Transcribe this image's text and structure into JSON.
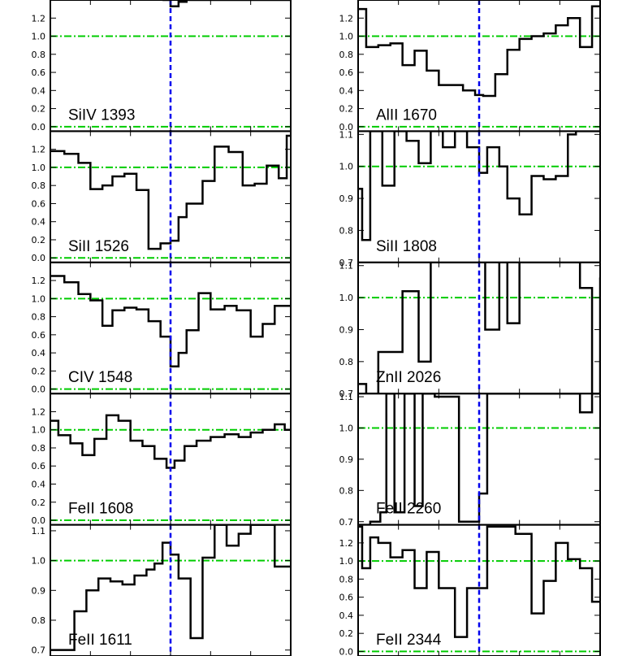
{
  "chart_data": {
    "type": "line",
    "style": "step",
    "layout": "two columns of five stacked panels sharing the velocity axis",
    "x_ticks": [
      -600,
      -400,
      -200,
      0,
      200,
      400,
      600
    ],
    "xlim": [
      -600,
      600
    ],
    "reference_lines": [
      {
        "name": "continuum",
        "axis": "y",
        "value": 1.0,
        "color": "#00cc00",
        "style": "dash-dot"
      },
      {
        "name": "zero-flux",
        "axis": "y",
        "value": 0.0,
        "color": "#00cc00",
        "style": "dash-dot"
      },
      {
        "name": "zero-velocity",
        "axis": "x",
        "value": 0,
        "color": "#0000ee",
        "style": "dashed"
      }
    ],
    "panels": [
      {
        "column": 0,
        "row": 0,
        "label": "SiIV 1393",
        "ylim": [
          -0.05,
          1.4
        ],
        "y_ticks": [
          "0.0",
          "0.2",
          "0.4",
          "0.6",
          "0.8",
          "1.0",
          "1.2"
        ],
        "x": [
          -40,
          0,
          40,
          80
        ],
        "values": [
          1.4,
          1.33,
          1.38,
          1.4
        ]
      },
      {
        "column": 0,
        "row": 1,
        "label": "SiII 1526",
        "ylim": [
          -0.05,
          1.4
        ],
        "y_ticks": [
          "0.0",
          "0.2",
          "0.4",
          "0.6",
          "0.8",
          "1.0",
          "1.2"
        ],
        "x": [
          -620,
          -530,
          -460,
          -400,
          -340,
          -290,
          -230,
          -170,
          -110,
          -50,
          0,
          40,
          80,
          160,
          220,
          290,
          360,
          420,
          480,
          540,
          580,
          600
        ],
        "values": [
          1.18,
          1.15,
          1.05,
          0.76,
          0.8,
          0.9,
          0.93,
          0.75,
          0.1,
          0.16,
          0.19,
          0.45,
          0.6,
          0.85,
          1.23,
          1.17,
          0.8,
          0.82,
          1.02,
          0.88,
          1.35,
          1.35
        ]
      },
      {
        "column": 0,
        "row": 2,
        "label": "CIV 1548",
        "ylim": [
          -0.05,
          1.4
        ],
        "y_ticks": [
          "0.0",
          "0.2",
          "0.4",
          "0.6",
          "0.8",
          "1.0",
          "1.2"
        ],
        "x": [
          -620,
          -530,
          -460,
          -400,
          -340,
          -290,
          -230,
          -170,
          -110,
          -50,
          0,
          40,
          80,
          140,
          200,
          270,
          330,
          400,
          460,
          520,
          560,
          600
        ],
        "values": [
          1.25,
          1.18,
          1.05,
          0.98,
          0.7,
          0.87,
          0.9,
          0.88,
          0.75,
          0.58,
          0.25,
          0.4,
          0.65,
          1.06,
          0.88,
          0.92,
          0.87,
          0.58,
          0.72,
          0.92,
          0.92,
          0.92
        ]
      },
      {
        "column": 0,
        "row": 3,
        "label": "FeII 1608",
        "ylim": [
          -0.05,
          1.4
        ],
        "y_ticks": [
          "0.0",
          "0.2",
          "0.4",
          "0.6",
          "0.8",
          "1.0",
          "1.2"
        ],
        "x": [
          -620,
          -560,
          -500,
          -440,
          -380,
          -320,
          -260,
          -200,
          -140,
          -80,
          -20,
          20,
          70,
          130,
          200,
          270,
          340,
          400,
          460,
          520,
          570,
          600
        ],
        "values": [
          1.1,
          0.94,
          0.85,
          0.72,
          0.9,
          1.16,
          1.1,
          0.88,
          0.82,
          0.68,
          0.58,
          0.66,
          0.82,
          0.88,
          0.92,
          0.95,
          0.92,
          0.97,
          1.0,
          1.06,
          1.0,
          1.0
        ]
      },
      {
        "column": 0,
        "row": 4,
        "label": "FeII 1611",
        "ylim": [
          0.68,
          1.12
        ],
        "y_ticks": [
          "0.7",
          "0.8",
          "0.9",
          "1.0",
          "1.1"
        ],
        "x": [
          -620,
          -480,
          -420,
          -360,
          -300,
          -240,
          -180,
          -120,
          -80,
          -40,
          0,
          40,
          100,
          160,
          220,
          280,
          340,
          400,
          460,
          520,
          560,
          600
        ],
        "values": [
          0.7,
          0.83,
          0.9,
          0.94,
          0.93,
          0.92,
          0.95,
          0.97,
          0.99,
          1.06,
          1.02,
          0.94,
          0.74,
          1.01,
          1.12,
          1.05,
          1.09,
          1.12,
          1.12,
          0.98,
          0.98,
          0.98
        ]
      },
      {
        "column": 1,
        "row": 0,
        "label": "AlII 1670",
        "ylim": [
          -0.05,
          1.4
        ],
        "y_ticks": [
          "0.0",
          "0.2",
          "0.4",
          "0.6",
          "0.8",
          "1.0",
          "1.2"
        ],
        "x": [
          -620,
          -560,
          -500,
          -440,
          -380,
          -320,
          -260,
          -200,
          -140,
          -80,
          -20,
          20,
          80,
          140,
          200,
          260,
          320,
          380,
          440,
          500,
          560,
          600
        ],
        "values": [
          1.3,
          0.88,
          0.9,
          0.92,
          0.68,
          0.84,
          0.62,
          0.46,
          0.46,
          0.4,
          0.35,
          0.34,
          0.58,
          0.85,
          0.97,
          1.0,
          1.03,
          1.12,
          1.2,
          0.88,
          1.33,
          1.33
        ]
      },
      {
        "column": 1,
        "row": 1,
        "label": "SiII 1808",
        "ylim": [
          0.7,
          1.11
        ],
        "y_ticks": [
          "0.7",
          "0.8",
          "0.9",
          "1.0",
          "1.1"
        ],
        "x": [
          -620,
          -580,
          -540,
          -480,
          -420,
          -360,
          -300,
          -240,
          -180,
          -120,
          -60,
          0,
          40,
          100,
          140,
          200,
          260,
          320,
          380,
          440,
          480,
          600
        ],
        "values": [
          0.93,
          0.77,
          1.11,
          0.94,
          1.11,
          1.08,
          1.01,
          1.11,
          1.06,
          1.11,
          1.06,
          0.98,
          1.06,
          1.0,
          0.9,
          0.85,
          0.97,
          0.96,
          0.97,
          1.1,
          1.11,
          1.11
        ]
      },
      {
        "column": 1,
        "row": 2,
        "label": "ZnII 2026",
        "ylim": [
          0.7,
          1.11
        ],
        "y_ticks": [
          "0.7",
          "0.8",
          "0.9",
          "1.0",
          "1.1"
        ],
        "x": [
          -620,
          -560,
          -500,
          -440,
          -380,
          -300,
          -240,
          -180,
          -120,
          -60,
          0,
          30,
          100,
          140,
          200,
          280,
          340,
          380,
          440,
          500,
          560,
          600
        ],
        "values": [
          0.73,
          0.7,
          0.83,
          0.83,
          1.02,
          0.8,
          1.11,
          1.11,
          1.11,
          1.11,
          1.11,
          0.9,
          1.11,
          0.92,
          1.11,
          1.11,
          1.11,
          1.11,
          1.11,
          1.03,
          0.7,
          1.06
        ]
      },
      {
        "column": 1,
        "row": 3,
        "label": "FeII 2260",
        "ylim": [
          0.69,
          1.11
        ],
        "y_ticks": [
          "0.7",
          "0.8",
          "0.9",
          "1.0",
          "1.1"
        ],
        "x": [
          -620,
          -540,
          -490,
          -460,
          -420,
          -370,
          -320,
          -280,
          -220,
          -100,
          -60,
          0,
          40,
          160,
          200,
          300,
          340,
          440,
          500,
          560,
          590,
          600
        ],
        "values": [
          0.69,
          0.7,
          0.73,
          1.11,
          0.73,
          1.11,
          0.75,
          1.11,
          1.1,
          0.7,
          0.7,
          0.79,
          1.11,
          1.11,
          1.11,
          1.11,
          1.11,
          1.11,
          1.05,
          1.11,
          1.11,
          1.11
        ]
      },
      {
        "column": 1,
        "row": 4,
        "label": "FeII 2344",
        "ylim": [
          -0.05,
          1.4
        ],
        "y_ticks": [
          "0.0",
          "0.2",
          "0.4",
          "0.6",
          "0.8",
          "1.0",
          "1.2"
        ],
        "x": [
          -620,
          -580,
          -540,
          -500,
          -440,
          -380,
          -320,
          -260,
          -200,
          -120,
          -60,
          0,
          40,
          100,
          180,
          260,
          320,
          380,
          440,
          500,
          560,
          600
        ],
        "values": [
          1.38,
          0.92,
          1.26,
          1.2,
          1.04,
          1.12,
          0.7,
          1.1,
          0.7,
          0.16,
          0.7,
          0.7,
          1.38,
          1.38,
          1.3,
          0.42,
          0.78,
          1.2,
          1.02,
          0.92,
          0.55,
          0.55
        ]
      }
    ]
  }
}
